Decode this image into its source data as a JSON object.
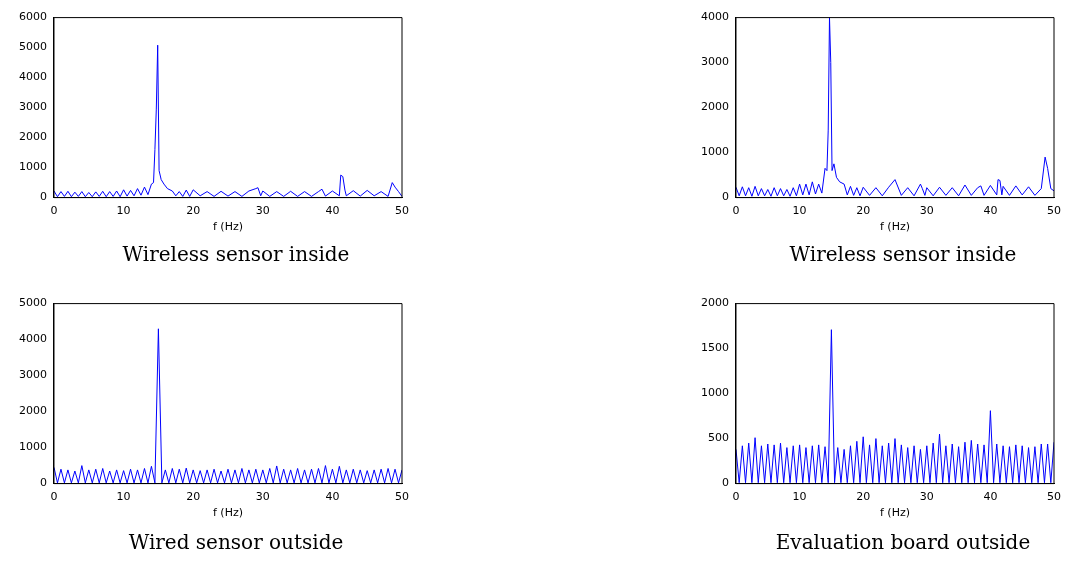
{
  "chart_data": [
    {
      "type": "line",
      "title": "Wireless sensor inside",
      "xlabel": "f (Hz)",
      "xlim": [
        0,
        50
      ],
      "xticks": [
        0,
        10,
        20,
        30,
        40,
        50
      ],
      "ylim": [
        0,
        6000
      ],
      "yticks": [
        0,
        1000,
        2000,
        3000,
        4000,
        5000,
        6000
      ],
      "marker": "none",
      "series": [
        {
          "color": "#0000ff",
          "x": [
            0,
            0.5,
            1,
            1.5,
            2,
            2.5,
            3,
            3.5,
            4,
            4.5,
            5,
            5.5,
            6,
            6.5,
            7,
            7.5,
            8,
            8.5,
            9,
            9.5,
            10,
            10.5,
            11,
            11.5,
            12,
            12.5,
            13,
            13.5,
            14,
            14.3,
            14.5,
            14.7,
            14.9,
            15.1,
            15.4,
            15.8,
            16.3,
            17,
            17.5,
            18,
            18.5,
            19,
            19.5,
            20,
            21,
            22,
            23,
            24,
            25,
            26,
            27,
            28,
            29,
            29.3,
            29.7,
            30,
            31,
            32,
            33,
            34,
            35,
            36,
            37,
            38,
            38.5,
            39,
            40,
            41,
            41.2,
            41.5,
            41.8,
            42,
            43,
            44,
            45,
            46,
            47,
            48,
            48.6,
            49,
            49.5,
            50
          ],
          "values": [
            220,
            30,
            200,
            40,
            210,
            30,
            180,
            40,
            200,
            30,
            170,
            30,
            190,
            40,
            210,
            30,
            200,
            40,
            220,
            30,
            260,
            50,
            240,
            60,
            300,
            80,
            350,
            100,
            450,
            500,
            1600,
            2950,
            5080,
            900,
            600,
            450,
            300,
            220,
            60,
            200,
            40,
            250,
            40,
            260,
            60,
            200,
            40,
            210,
            50,
            200,
            40,
            220,
            300,
            330,
            60,
            220,
            40,
            200,
            40,
            210,
            40,
            200,
            40,
            200,
            280,
            50,
            220,
            60,
            750,
            700,
            250,
            60,
            230,
            50,
            240,
            60,
            200,
            40,
            500,
            350,
            200,
            40
          ]
        }
      ]
    },
    {
      "type": "line",
      "title": "Wireless sensor inside",
      "xlabel": "f (Hz)",
      "xlim": [
        0,
        50
      ],
      "xticks": [
        0,
        10,
        20,
        30,
        40,
        50
      ],
      "ylim": [
        0,
        4000
      ],
      "yticks": [
        0,
        1000,
        2000,
        3000,
        4000
      ],
      "marker": "none",
      "series": [
        {
          "color": "#0000ff",
          "x": [
            0,
            0.5,
            1,
            1.5,
            2,
            2.5,
            3,
            3.5,
            4,
            4.5,
            5,
            5.5,
            6,
            6.5,
            7,
            7.5,
            8,
            8.5,
            9,
            9.5,
            10,
            10.5,
            11,
            11.5,
            12,
            12.5,
            13,
            13.5,
            14,
            14.3,
            14.5,
            14.7,
            14.9,
            15.1,
            15.4,
            15.8,
            16.3,
            17,
            17.5,
            18,
            18.5,
            19,
            19.5,
            20,
            21,
            22,
            23,
            24,
            25,
            26,
            27,
            28,
            29,
            29.3,
            29.7,
            30,
            31,
            32,
            33,
            34,
            35,
            36,
            37,
            38,
            38.5,
            39,
            40,
            41,
            41.2,
            41.5,
            41.8,
            42,
            43,
            44,
            45,
            46,
            47,
            48,
            48.6,
            49,
            49.5,
            50
          ],
          "values": [
            230,
            40,
            240,
            40,
            220,
            30,
            250,
            40,
            200,
            40,
            180,
            30,
            220,
            40,
            200,
            40,
            180,
            30,
            220,
            40,
            300,
            60,
            300,
            60,
            350,
            80,
            300,
            100,
            650,
            600,
            1500,
            4000,
            3000,
            600,
            750,
            450,
            350,
            300,
            60,
            250,
            50,
            220,
            40,
            230,
            50,
            220,
            40,
            230,
            400,
            50,
            220,
            40,
            300,
            200,
            50,
            220,
            40,
            230,
            50,
            220,
            40,
            280,
            50,
            220,
            260,
            50,
            270,
            60,
            400,
            380,
            60,
            250,
            50,
            260,
            60,
            240,
            50,
            200,
            900,
            650,
            200,
            150
          ]
        }
      ]
    },
    {
      "type": "line",
      "title": "Wired sensor outside",
      "xlabel": "f (Hz)",
      "xlim": [
        0,
        50
      ],
      "xticks": [
        0,
        10,
        20,
        30,
        40,
        50
      ],
      "ylim": [
        0,
        5000
      ],
      "yticks": [
        0,
        1000,
        2000,
        3000,
        4000,
        5000
      ],
      "marker": "none",
      "series": [
        {
          "color": "#0000ff",
          "x": [
            0,
            0.5,
            1,
            1.5,
            2,
            2.5,
            3,
            3.5,
            4,
            4.5,
            5,
            5.5,
            6,
            6.5,
            7,
            7.5,
            8,
            8.5,
            9,
            9.5,
            10,
            10.5,
            11,
            11.5,
            12,
            12.5,
            13,
            13.5,
            14,
            14.5,
            15,
            15.5,
            16,
            16.5,
            17,
            17.5,
            18,
            18.5,
            19,
            19.5,
            20,
            20.5,
            21,
            21.5,
            22,
            22.5,
            23,
            23.5,
            24,
            24.5,
            25,
            25.5,
            26,
            26.5,
            27,
            27.5,
            28,
            28.5,
            29,
            29.5,
            30,
            30.5,
            31,
            31.5,
            32,
            32.5,
            33,
            33.5,
            34,
            34.5,
            35,
            35.5,
            36,
            36.5,
            37,
            37.5,
            38,
            38.5,
            39,
            39.5,
            40,
            40.5,
            41,
            41.5,
            42,
            42.5,
            43,
            43.5,
            44,
            44.5,
            45,
            45.5,
            46,
            46.5,
            47,
            47.5,
            48,
            48.5,
            49,
            49.5,
            50
          ],
          "values": [
            450,
            20,
            400,
            20,
            380,
            20,
            350,
            20,
            500,
            20,
            380,
            20,
            400,
            20,
            420,
            20,
            350,
            20,
            380,
            20,
            360,
            20,
            400,
            20,
            380,
            20,
            420,
            20,
            480,
            20,
            4300,
            20,
            380,
            20,
            420,
            20,
            400,
            20,
            430,
            20,
            380,
            20,
            360,
            20,
            380,
            20,
            400,
            20,
            350,
            20,
            400,
            20,
            380,
            20,
            420,
            20,
            380,
            20,
            400,
            20,
            380,
            20,
            420,
            20,
            490,
            20,
            400,
            20,
            380,
            20,
            420,
            20,
            380,
            20,
            400,
            20,
            420,
            20,
            500,
            20,
            400,
            20,
            480,
            20,
            380,
            20,
            400,
            20,
            380,
            20,
            360,
            20,
            380,
            20,
            400,
            20,
            420,
            20,
            400,
            20,
            380
          ]
        }
      ]
    },
    {
      "type": "line",
      "title": "Evaluation board outside",
      "xlabel": "f (Hz)",
      "xlim": [
        0,
        50
      ],
      "xticks": [
        0,
        10,
        20,
        30,
        40,
        50
      ],
      "ylim": [
        0,
        2000
      ],
      "yticks": [
        0,
        500,
        1000,
        1500,
        2000
      ],
      "marker": "none",
      "series": [
        {
          "color": "#0000ff",
          "x": [
            0,
            0.5,
            1,
            1.5,
            2,
            2.5,
            3,
            3.5,
            4,
            4.5,
            5,
            5.5,
            6,
            6.5,
            7,
            7.5,
            8,
            8.5,
            9,
            9.5,
            10,
            10.5,
            11,
            11.5,
            12,
            12.5,
            13,
            13.5,
            14,
            14.5,
            15,
            15.5,
            16,
            16.5,
            17,
            17.5,
            18,
            18.5,
            19,
            19.5,
            20,
            20.5,
            21,
            21.5,
            22,
            22.5,
            23,
            23.5,
            24,
            24.5,
            25,
            25.5,
            26,
            26.5,
            27,
            27.5,
            28,
            28.5,
            29,
            29.5,
            30,
            30.5,
            31,
            31.5,
            32,
            32.5,
            33,
            33.5,
            34,
            34.5,
            35,
            35.5,
            36,
            36.5,
            37,
            37.5,
            38,
            38.5,
            39,
            39.5,
            40,
            40.5,
            41,
            41.5,
            42,
            42.5,
            43,
            43.5,
            44,
            44.5,
            45,
            45.5,
            46,
            46.5,
            47,
            47.5,
            48,
            48.5,
            49,
            49.5,
            50
          ],
          "values": [
            380,
            10,
            420,
            10,
            450,
            10,
            510,
            10,
            420,
            10,
            440,
            10,
            430,
            10,
            450,
            10,
            400,
            10,
            420,
            10,
            430,
            10,
            400,
            10,
            420,
            10,
            430,
            10,
            410,
            10,
            1710,
            10,
            400,
            10,
            380,
            10,
            420,
            10,
            470,
            10,
            520,
            10,
            430,
            10,
            500,
            10,
            420,
            10,
            450,
            10,
            500,
            10,
            430,
            10,
            400,
            10,
            420,
            10,
            380,
            10,
            420,
            10,
            450,
            10,
            550,
            10,
            420,
            10,
            440,
            10,
            410,
            10,
            460,
            10,
            480,
            10,
            440,
            10,
            430,
            10,
            810,
            10,
            440,
            10,
            420,
            10,
            410,
            10,
            430,
            10,
            420,
            10,
            400,
            10,
            410,
            10,
            440,
            10,
            440,
            10,
            460
          ]
        }
      ]
    }
  ]
}
